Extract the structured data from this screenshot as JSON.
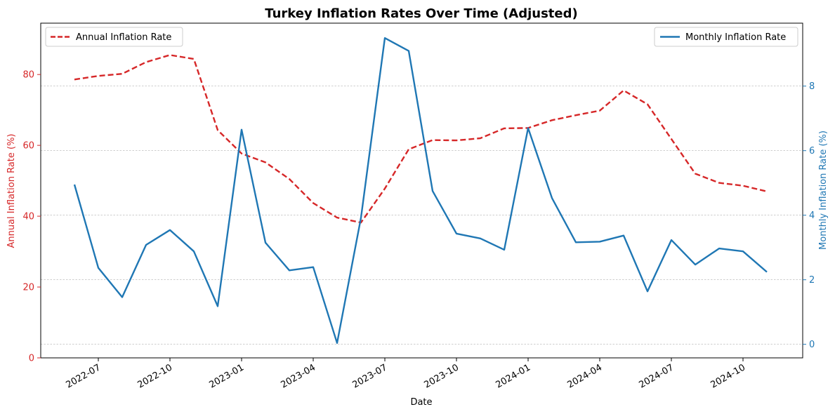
{
  "chart_data": {
    "type": "line",
    "title": "Turkey Inflation Rates Over Time (Adjusted)",
    "xlabel": "Date",
    "x": [
      "2022-06",
      "2022-07",
      "2022-08",
      "2022-09",
      "2022-10",
      "2022-11",
      "2022-12",
      "2023-01",
      "2023-02",
      "2023-03",
      "2023-04",
      "2023-05",
      "2023-06",
      "2023-07",
      "2023-08",
      "2023-09",
      "2023-10",
      "2023-11",
      "2023-12",
      "2024-01",
      "2024-02",
      "2024-03",
      "2024-04",
      "2024-05",
      "2024-06",
      "2024-07",
      "2024-08",
      "2024-09",
      "2024-10",
      "2024-11"
    ],
    "x_ticks": [
      "2022-07",
      "2022-10",
      "2023-01",
      "2023-04",
      "2023-07",
      "2023-10",
      "2024-01",
      "2024-04",
      "2024-07",
      "2024-10"
    ],
    "series": [
      {
        "name": "Annual Inflation Rate",
        "axis": "left",
        "color": "#d62728",
        "style": "dashed",
        "values": [
          78.6,
          79.6,
          80.2,
          83.5,
          85.5,
          84.4,
          64.3,
          57.7,
          55.2,
          50.5,
          43.7,
          39.6,
          38.2,
          47.8,
          58.9,
          61.5,
          61.4,
          62.0,
          64.8,
          64.9,
          67.1,
          68.5,
          69.8,
          75.5,
          71.6,
          61.8,
          52.0,
          49.4,
          48.6,
          47.0
        ]
      },
      {
        "name": "Monthly Inflation Rate",
        "axis": "right",
        "color": "#1f77b4",
        "style": "solid",
        "values": [
          4.95,
          2.37,
          1.46,
          3.08,
          3.54,
          2.88,
          1.18,
          6.65,
          3.15,
          2.29,
          2.39,
          0.04,
          3.92,
          9.49,
          9.09,
          4.75,
          3.43,
          3.28,
          2.93,
          6.7,
          4.53,
          3.16,
          3.18,
          3.37,
          1.64,
          3.23,
          2.47,
          2.97,
          2.88,
          2.24
        ]
      }
    ],
    "left_axis": {
      "label": "Annual Inflation Rate (%)",
      "color": "#d62728",
      "ticks": [
        "0",
        "20",
        "40",
        "60",
        "80"
      ],
      "ylim": [
        0,
        94.5
      ]
    },
    "right_axis": {
      "label": "Monthly Inflation Rate (%)",
      "color": "#1f77b4",
      "ticks": [
        "0",
        "2",
        "4",
        "6",
        "8"
      ],
      "ylim": [
        -0.42,
        9.95
      ]
    },
    "grid": "horizontal dashed",
    "legend_left": {
      "label": "Annual Inflation Rate",
      "placement": "top-left"
    },
    "legend_right": {
      "label": "Monthly Inflation Rate",
      "placement": "top-right"
    }
  }
}
